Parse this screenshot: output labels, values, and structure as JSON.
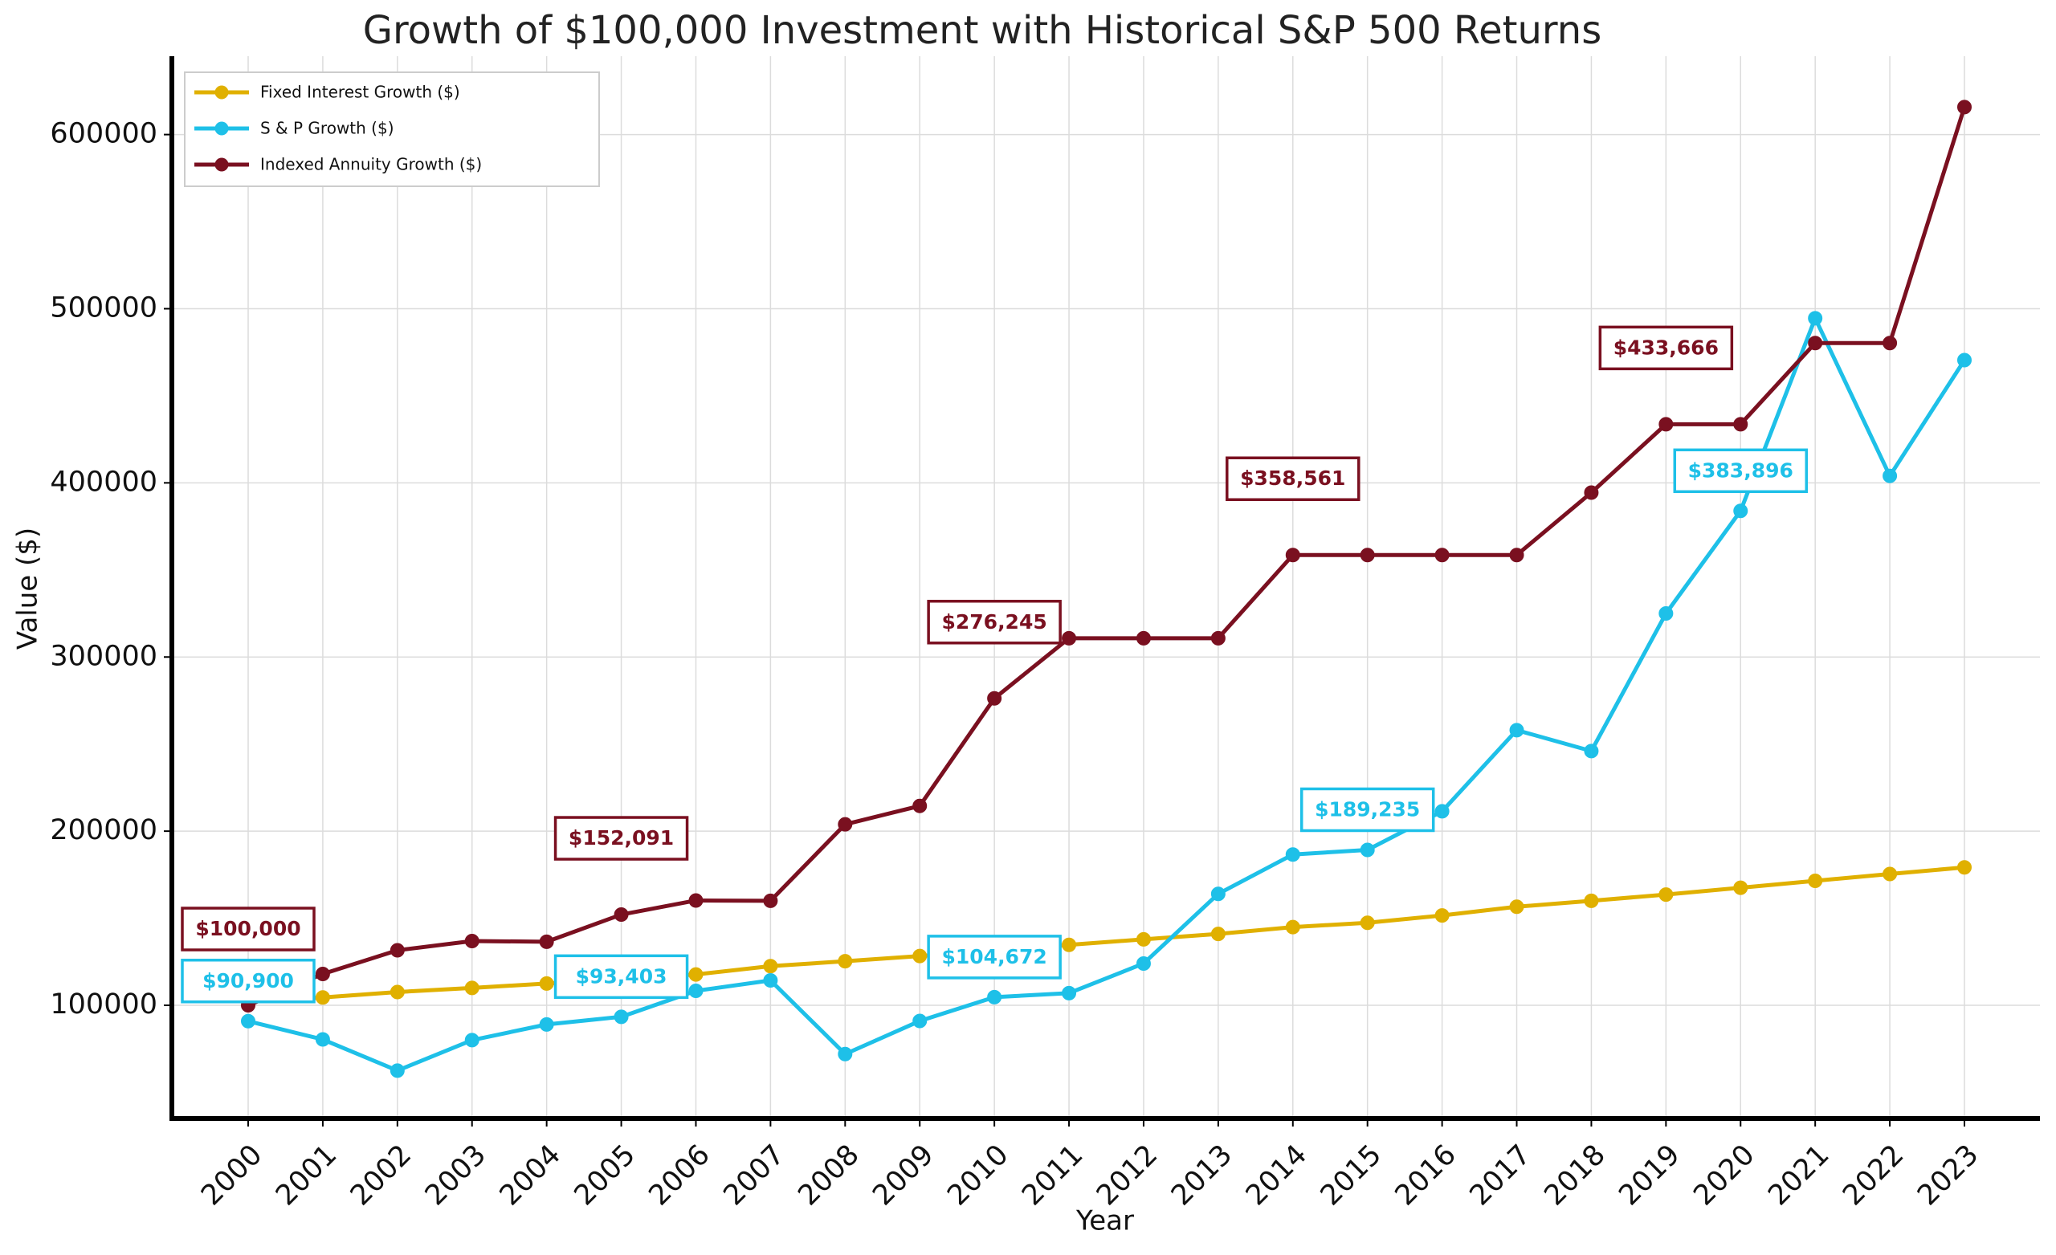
{
  "chart_data": {
    "type": "line",
    "title": "Growth of $100,000 Investment with Historical S&P 500 Returns",
    "xlabel": "Year",
    "ylabel": "Value ($)",
    "categories": [
      "2000",
      "2001",
      "2002",
      "2003",
      "2004",
      "2005",
      "2006",
      "2007",
      "2008",
      "2009",
      "2010",
      "2011",
      "2012",
      "2013",
      "2014",
      "2015",
      "2016",
      "2017",
      "2018",
      "2019",
      "2020",
      "2021",
      "2022",
      "2023"
    ],
    "series": [
      {
        "name": "Fixed Interest Growth ($)",
        "color": "#e0b000",
        "values": [
          102000,
          104500,
          107600,
          110000,
          112500,
          115000,
          117700,
          122500,
          125300,
          128300,
          131000,
          134700,
          137900,
          141000,
          144900,
          147400,
          151600,
          156600,
          160000,
          163600,
          167500,
          171500,
          175400,
          179200
        ]
      },
      {
        "name": "S & P Growth ($)",
        "color": "#1ec0e8",
        "values": [
          90900,
          80400,
          62500,
          80000,
          89000,
          93403,
          108300,
          114300,
          72000,
          91000,
          104672,
          107000,
          124000,
          164000,
          186600,
          189235,
          211400,
          258000,
          246000,
          325000,
          383896,
          494500,
          404000,
          470500
        ],
        "value_labels": [
          "$90,900",
          null,
          null,
          null,
          null,
          "$93,403",
          null,
          null,
          null,
          null,
          "$104,672",
          null,
          null,
          null,
          null,
          "$189,235",
          null,
          null,
          null,
          null,
          "$383,896",
          null,
          null,
          null
        ]
      },
      {
        "name": "Indexed Annuity Growth ($)",
        "color": "#7a1020",
        "values": [
          100000,
          118000,
          131600,
          136900,
          136500,
          152091,
          160200,
          160000,
          203900,
          214500,
          276245,
          310800,
          310800,
          310800,
          358561,
          358561,
          358561,
          358561,
          394400,
          433666,
          433666,
          480300,
          480300,
          615800
        ],
        "value_labels": [
          "$100,000",
          null,
          null,
          null,
          null,
          "$152,091",
          null,
          null,
          null,
          null,
          "$276,245",
          null,
          null,
          null,
          "$358,561",
          null,
          null,
          null,
          null,
          "$433,666",
          null,
          null,
          null,
          null
        ]
      }
    ],
    "ylim": [
      35000,
      645000
    ],
    "yticks": [
      100000,
      200000,
      300000,
      400000,
      500000,
      600000
    ],
    "grid": true,
    "legend": "upper left"
  }
}
